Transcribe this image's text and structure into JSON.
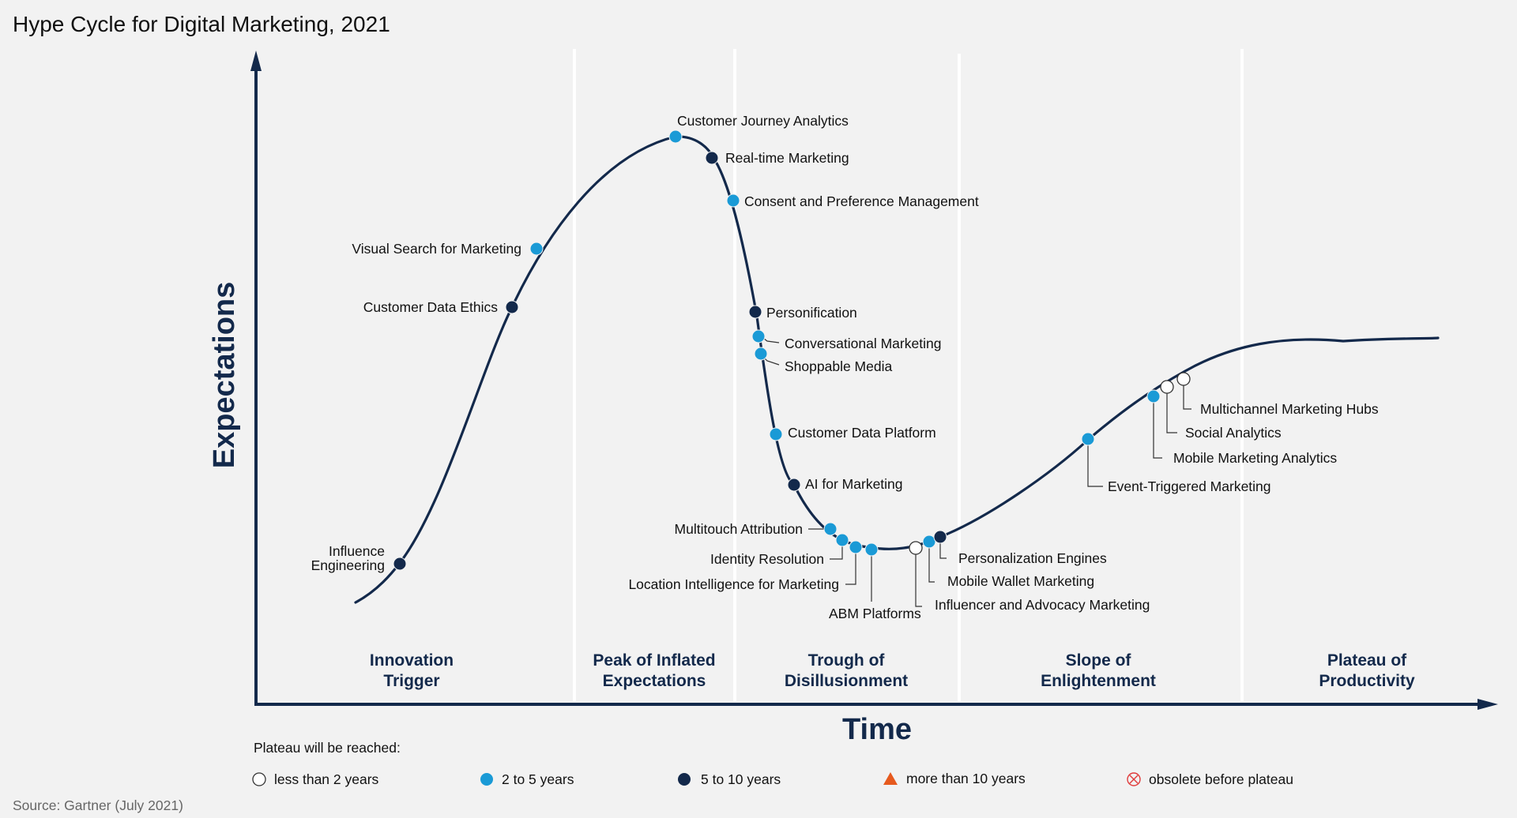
{
  "title": "Hype Cycle for Digital Marketing, 2021",
  "axes": {
    "y_label": "Expectations",
    "x_label": "Time"
  },
  "phases": [
    {
      "line1": "Innovation",
      "line2": "Trigger"
    },
    {
      "line1": "Peak of Inflated",
      "line2": "Expectations"
    },
    {
      "line1": "Trough of",
      "line2": "Disillusionment"
    },
    {
      "line1": "Slope of",
      "line2": "Enlightenment"
    },
    {
      "line1": "Plateau of",
      "line2": "Productivity"
    }
  ],
  "legend": {
    "heading": "Plateau will be reached:",
    "items": [
      {
        "key": "lt2",
        "label": "less than 2 years",
        "shape": "hollow-circle"
      },
      {
        "key": "2to5",
        "label": "2 to 5 years",
        "shape": "light-blue-circle"
      },
      {
        "key": "5to10",
        "label": "5 to 10 years",
        "shape": "navy-circle"
      },
      {
        "key": "gt10",
        "label": "more than 10 years",
        "shape": "orange-triangle"
      },
      {
        "key": "obsolete",
        "label": "obsolete before plateau",
        "shape": "red-crossed-circle"
      }
    ]
  },
  "colors": {
    "curve": "#13294b",
    "lt2": "#ffffff",
    "2to5": "#1a9ad6",
    "5to10": "#13294b",
    "gt10": "#e65a1e",
    "obsolete": "#e03c3c",
    "phase_text": "#13294b",
    "background": "#f2f2f2"
  },
  "technologies": [
    {
      "name": "Influence\nEngineering",
      "category": "5to10",
      "phase": "Innovation Trigger"
    },
    {
      "name": "Customer Data Ethics",
      "category": "5to10",
      "phase": "Innovation Trigger"
    },
    {
      "name": "Visual Search for Marketing",
      "category": "2to5",
      "phase": "Innovation Trigger"
    },
    {
      "name": "Customer Journey Analytics",
      "category": "2to5",
      "phase": "Peak of Inflated Expectations"
    },
    {
      "name": "Real-time Marketing",
      "category": "5to10",
      "phase": "Peak of Inflated Expectations"
    },
    {
      "name": "Consent and Preference Management",
      "category": "2to5",
      "phase": "Trough of Disillusionment"
    },
    {
      "name": "Personification",
      "category": "5to10",
      "phase": "Trough of Disillusionment"
    },
    {
      "name": "Conversational Marketing",
      "category": "2to5",
      "phase": "Trough of Disillusionment"
    },
    {
      "name": "Shoppable Media",
      "category": "2to5",
      "phase": "Trough of Disillusionment"
    },
    {
      "name": "Customer Data Platform",
      "category": "2to5",
      "phase": "Trough of Disillusionment"
    },
    {
      "name": "AI for Marketing",
      "category": "5to10",
      "phase": "Trough of Disillusionment"
    },
    {
      "name": "Multitouch Attribution",
      "category": "2to5",
      "phase": "Trough of Disillusionment"
    },
    {
      "name": "Identity Resolution",
      "category": "2to5",
      "phase": "Trough of Disillusionment"
    },
    {
      "name": "Location Intelligence for Marketing",
      "category": "2to5",
      "phase": "Trough of Disillusionment"
    },
    {
      "name": "ABM Platforms",
      "category": "2to5",
      "phase": "Trough of Disillusionment"
    },
    {
      "name": "Influencer and Advocacy Marketing",
      "category": "lt2",
      "phase": "Trough of Disillusionment"
    },
    {
      "name": "Mobile Wallet Marketing",
      "category": "2to5",
      "phase": "Trough of Disillusionment"
    },
    {
      "name": "Personalization Engines",
      "category": "5to10",
      "phase": "Trough of Disillusionment"
    },
    {
      "name": "Event-Triggered Marketing",
      "category": "2to5",
      "phase": "Slope of Enlightenment"
    },
    {
      "name": "Mobile Marketing Analytics",
      "category": "2to5",
      "phase": "Slope of Enlightenment"
    },
    {
      "name": "Social Analytics",
      "category": "lt2",
      "phase": "Slope of Enlightenment"
    },
    {
      "name": "Multichannel Marketing Hubs",
      "category": "lt2",
      "phase": "Slope of Enlightenment"
    }
  ],
  "source": "Source: Gartner (July 2021)"
}
